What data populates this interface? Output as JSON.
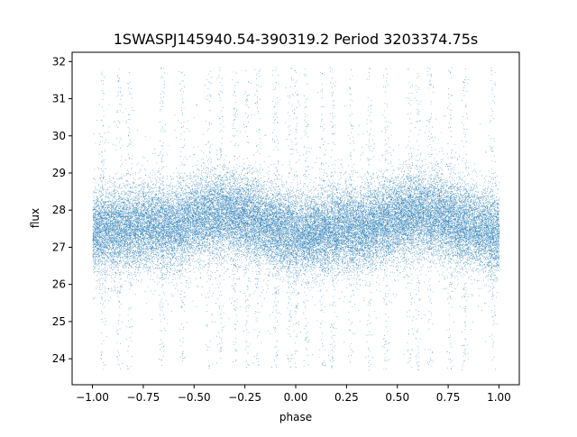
{
  "chart_data": {
    "type": "scatter",
    "title": "1SWASPJ145940.54-390319.2 Period 3203374.75s",
    "xlabel": "phase",
    "ylabel": "flux",
    "xlim": [
      -1.1,
      1.1
    ],
    "ylim": [
      23.3,
      32.25
    ],
    "x_ticks": [
      -1.0,
      -0.75,
      -0.5,
      -0.25,
      0.0,
      0.25,
      0.5,
      0.75,
      1.0
    ],
    "x_tick_labels": [
      "−1.00",
      "−0.75",
      "−0.50",
      "−0.25",
      "0.00",
      "0.25",
      "0.50",
      "0.75",
      "1.00"
    ],
    "y_ticks": [
      24,
      25,
      26,
      27,
      28,
      29,
      30,
      31,
      32
    ],
    "y_tick_labels": [
      "24",
      "25",
      "26",
      "27",
      "28",
      "29",
      "30",
      "31",
      "32"
    ],
    "grid": false,
    "legend": "none",
    "marker_color": "#1f77b4",
    "series": [
      {
        "phase_range": [
          -1.0,
          1.0
        ],
        "flux_median": 27.6,
        "flux_core_range": [
          26.5,
          28.8
        ],
        "flux_full_range": [
          23.7,
          31.85
        ],
        "point_count": 40000,
        "phase_profile": [
          {
            "x": -1.0,
            "y": 27.4
          },
          {
            "x": -0.9,
            "y": 27.5
          },
          {
            "x": -0.8,
            "y": 27.5
          },
          {
            "x": -0.7,
            "y": 27.6
          },
          {
            "x": -0.6,
            "y": 27.5
          },
          {
            "x": -0.5,
            "y": 27.8
          },
          {
            "x": -0.4,
            "y": 27.9
          },
          {
            "x": -0.3,
            "y": 27.9
          },
          {
            "x": -0.2,
            "y": 27.7
          },
          {
            "x": -0.1,
            "y": 27.5
          },
          {
            "x": 0.0,
            "y": 27.4
          },
          {
            "x": 0.1,
            "y": 27.4
          },
          {
            "x": 0.2,
            "y": 27.5
          },
          {
            "x": 0.3,
            "y": 27.5
          },
          {
            "x": 0.4,
            "y": 27.6
          },
          {
            "x": 0.5,
            "y": 27.8
          },
          {
            "x": 0.6,
            "y": 27.9
          },
          {
            "x": 0.7,
            "y": 27.9
          },
          {
            "x": 0.8,
            "y": 27.6
          },
          {
            "x": 0.9,
            "y": 27.5
          },
          {
            "x": 1.0,
            "y": 27.4
          }
        ],
        "vertical_streak_phases": [
          -0.95,
          -0.87,
          -0.82,
          -0.66,
          -0.56,
          -0.43,
          -0.37,
          -0.3,
          -0.24,
          -0.19,
          -0.1,
          -0.03,
          0.0,
          0.05,
          0.13,
          0.18,
          0.27,
          0.36,
          0.44,
          0.56,
          0.6,
          0.66,
          0.76,
          0.83,
          0.97
        ]
      }
    ]
  }
}
